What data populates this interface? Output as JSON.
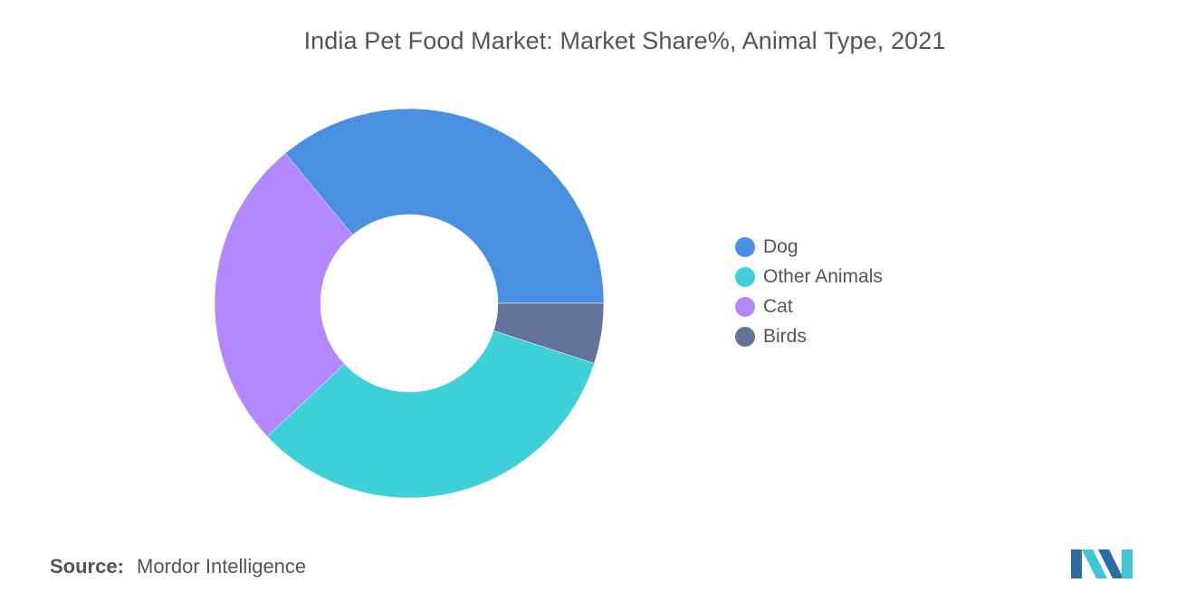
{
  "chart_data": {
    "type": "pie",
    "variant": "donut",
    "title": "India Pet Food Market: Market Share%, Animal Type, 2021",
    "legend_position": "right",
    "series": [
      {
        "name": "Dog",
        "value": 36,
        "color": "#4a90e2"
      },
      {
        "name": "Cat",
        "value": 26,
        "color": "#b388ff"
      },
      {
        "name": "Other Animals",
        "value": 33,
        "color": "#3ed0d8"
      },
      {
        "name": "Birds",
        "value": 5,
        "color": "#637399"
      }
    ],
    "legend_entries": [
      "Dog",
      "Other Animals",
      "Cat",
      "Birds"
    ]
  },
  "source": {
    "label": "Source:",
    "text": "Mordor Intelligence"
  },
  "logo": {
    "icon": "mordor-intelligence-logo",
    "colors": [
      "#2b6ca3",
      "#3fc6d4"
    ]
  }
}
